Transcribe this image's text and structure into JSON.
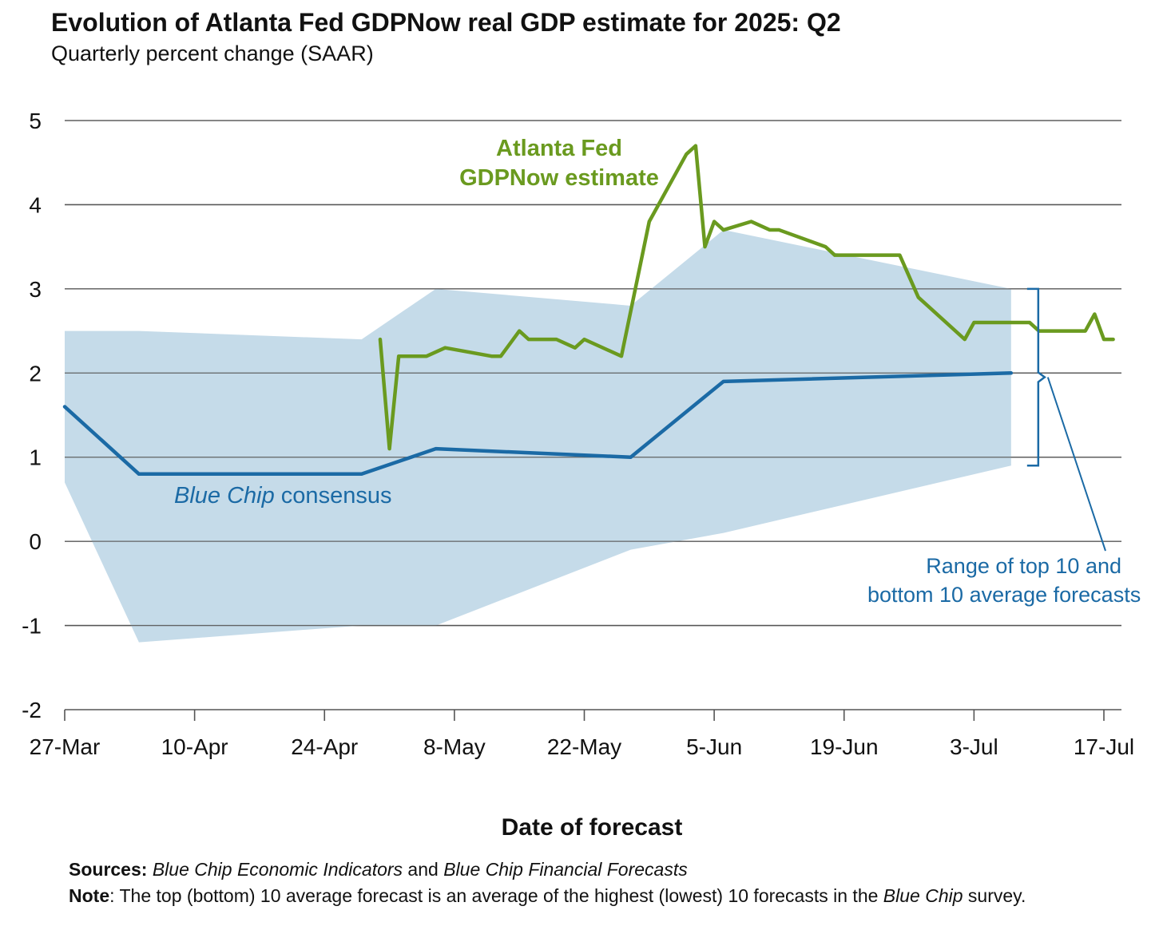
{
  "title": "Evolution of Atlanta Fed GDPNow real GDP estimate for 2025: Q2",
  "subtitle": "Quarterly percent change (SAAR)",
  "xlabel": "Date of forecast",
  "sources": {
    "label": "Sources:",
    "source1": "Blue Chip Economic Indicators",
    "and": " and ",
    "source2": "Blue Chip Financial Forecasts"
  },
  "note": {
    "label": "Note",
    "text1": ": The top (bottom) 10 average forecast is an average of the highest (lowest) 10 forecasts in the ",
    "italic": "Blue Chip",
    "text2": " survey."
  },
  "annotations": {
    "gdpnow_line1": "Atlanta Fed",
    "gdpnow_line2": "GDPNow estimate",
    "bluechip_italic": "Blue Chip",
    "bluechip_rest": " consensus",
    "range_line1": "Range of top 10 and",
    "range_line2": "bottom 10 average forecasts"
  },
  "colors": {
    "gdpnow": "#6a9a1f",
    "bluechip": "#1b6aa5",
    "range_fill": "#c5dbe9",
    "grid": "#555555"
  },
  "chart_data": {
    "type": "line",
    "x_type": "date",
    "xlim": [
      "2025-03-27",
      "2025-07-18"
    ],
    "ylim": [
      -2,
      5
    ],
    "yticks": [
      -2,
      -1,
      0,
      1,
      2,
      3,
      4,
      5
    ],
    "xticks": [
      "2025-03-27",
      "2025-04-10",
      "2025-04-24",
      "2025-05-08",
      "2025-05-22",
      "2025-06-05",
      "2025-06-19",
      "2025-07-03",
      "2025-07-17"
    ],
    "xtick_labels": [
      "27-Mar",
      "10-Apr",
      "24-Apr",
      "8-May",
      "22-May",
      "5-Jun",
      "19-Jun",
      "3-Jul",
      "17-Jul"
    ],
    "grid": "horizontal",
    "series": [
      {
        "name": "Atlanta Fed GDPNow estimate",
        "kind": "line",
        "x": [
          "2025-04-30",
          "2025-05-01",
          "2025-05-02",
          "2025-05-05",
          "2025-05-07",
          "2025-05-12",
          "2025-05-13",
          "2025-05-15",
          "2025-05-16",
          "2025-05-19",
          "2025-05-21",
          "2025-05-22",
          "2025-05-26",
          "2025-05-29",
          "2025-06-02",
          "2025-06-03",
          "2025-06-04",
          "2025-06-05",
          "2025-06-06",
          "2025-06-09",
          "2025-06-11",
          "2025-06-12",
          "2025-06-17",
          "2025-06-18",
          "2025-06-25",
          "2025-06-27",
          "2025-07-02",
          "2025-07-03",
          "2025-07-09",
          "2025-07-10",
          "2025-07-15",
          "2025-07-16",
          "2025-07-17",
          "2025-07-18"
        ],
        "y": [
          2.4,
          1.1,
          2.2,
          2.2,
          2.3,
          2.2,
          2.2,
          2.5,
          2.4,
          2.4,
          2.3,
          2.4,
          2.2,
          3.8,
          4.6,
          4.7,
          3.5,
          3.8,
          3.7,
          3.8,
          3.7,
          3.7,
          3.5,
          3.4,
          3.4,
          2.9,
          2.4,
          2.6,
          2.6,
          2.5,
          2.5,
          2.7,
          2.4,
          2.4
        ]
      },
      {
        "name": "Blue Chip consensus",
        "kind": "line",
        "x": [
          "2025-03-27",
          "2025-04-04",
          "2025-04-28",
          "2025-05-06",
          "2025-05-27",
          "2025-06-06",
          "2025-07-07"
        ],
        "y": [
          1.6,
          0.8,
          0.8,
          1.1,
          1.0,
          1.9,
          2.0
        ]
      },
      {
        "name": "Range of top 10 and bottom 10 average forecasts",
        "kind": "band",
        "x": [
          "2025-03-27",
          "2025-04-04",
          "2025-04-28",
          "2025-05-06",
          "2025-05-27",
          "2025-06-06",
          "2025-07-07"
        ],
        "upper": [
          2.5,
          2.5,
          2.4,
          3.0,
          2.8,
          3.7,
          3.0
        ],
        "lower": [
          0.7,
          -1.2,
          -1.0,
          -1.0,
          -0.1,
          0.1,
          0.9
        ]
      }
    ]
  }
}
